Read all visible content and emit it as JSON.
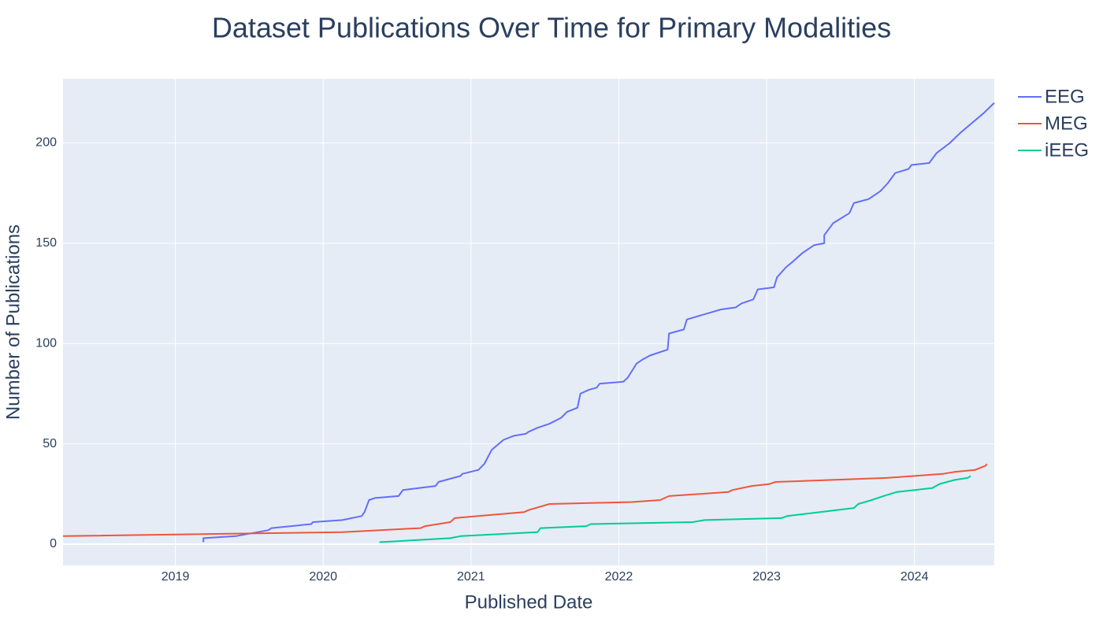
{
  "chart_data": {
    "type": "line",
    "title": "Dataset Publications Over Time for Primary Modalities",
    "x_label": "Published Date",
    "y_label": "Number of Publications",
    "xlim": [
      2018.24,
      2024.54
    ],
    "xticks": [
      2019,
      2020,
      2021,
      2022,
      2023,
      2024
    ],
    "ylim": [
      -10.6,
      232
    ],
    "yticks": [
      0,
      50,
      100,
      150,
      200
    ],
    "grid": true,
    "legend": "right",
    "series": [
      {
        "name": "EEG",
        "color": "#636efa",
        "x": [
          2019.19,
          2019.19,
          2019.41,
          2019.63,
          2019.65,
          2019.92,
          2019.93,
          2020.13,
          2020.26,
          2020.28,
          2020.31,
          2020.35,
          2020.51,
          2020.54,
          2020.76,
          2020.78,
          2020.88,
          2020.93,
          2020.94,
          2021.05,
          2021.09,
          2021.14,
          2021.22,
          2021.29,
          2021.37,
          2021.39,
          2021.45,
          2021.53,
          2021.61,
          2021.65,
          2021.72,
          2021.74,
          2021.8,
          2021.85,
          2021.87,
          2022.03,
          2022.06,
          2022.12,
          2022.16,
          2022.21,
          2022.33,
          2022.34,
          2022.44,
          2022.46,
          2022.69,
          2022.79,
          2022.83,
          2022.91,
          2022.94,
          2023.05,
          2023.07,
          2023.13,
          2023.18,
          2023.24,
          2023.32,
          2023.39,
          2023.39,
          2023.45,
          2023.56,
          2023.59,
          2023.69,
          2023.77,
          2023.82,
          2023.87,
          2023.96,
          2023.98,
          2024.1,
          2024.15,
          2024.24,
          2024.31,
          2024.39,
          2024.47,
          2024.54
        ],
        "values": [
          1,
          3,
          4,
          7,
          8,
          10,
          11,
          12,
          14,
          16,
          22,
          23,
          24,
          27,
          29,
          31,
          33,
          34,
          35,
          37,
          40,
          47,
          52,
          54,
          55,
          56,
          58,
          60,
          63,
          66,
          68,
          75,
          77,
          78,
          80,
          81,
          83,
          90,
          92,
          94,
          97,
          105,
          107,
          112,
          117,
          118,
          120,
          122,
          127,
          128,
          133,
          138,
          141,
          145,
          149,
          150,
          154,
          160,
          165,
          170,
          172,
          176,
          180,
          185,
          187,
          189,
          190,
          195,
          200,
          205,
          210,
          215,
          220
        ]
      },
      {
        "name": "MEG",
        "color": "#ef553b",
        "x": [
          2018.24,
          2020.13,
          2020.66,
          2020.69,
          2020.86,
          2020.89,
          2021.36,
          2021.39,
          2021.53,
          2022.09,
          2022.28,
          2022.34,
          2022.74,
          2022.77,
          2022.9,
          2023.02,
          2023.06,
          2023.81,
          2024.0,
          2024.19,
          2024.27,
          2024.41,
          2024.48,
          2024.49
        ],
        "values": [
          4,
          6,
          8,
          9,
          11,
          13,
          16,
          17,
          20,
          21,
          22,
          24,
          26,
          27,
          29,
          30,
          31,
          33,
          34,
          35,
          36,
          37,
          39,
          40
        ]
      },
      {
        "name": "iEEG",
        "color": "#00cc96",
        "x": [
          2020.38,
          2020.86,
          2020.93,
          2021.45,
          2021.47,
          2021.78,
          2021.81,
          2022.5,
          2022.58,
          2023.1,
          2023.14,
          2023.59,
          2023.62,
          2023.71,
          2023.79,
          2023.88,
          2024.12,
          2024.17,
          2024.27,
          2024.36,
          2024.38
        ],
        "values": [
          1,
          3,
          4,
          6,
          8,
          9,
          10,
          11,
          12,
          13,
          14,
          18,
          20,
          22,
          24,
          26,
          28,
          30,
          32,
          33,
          34
        ]
      }
    ]
  }
}
